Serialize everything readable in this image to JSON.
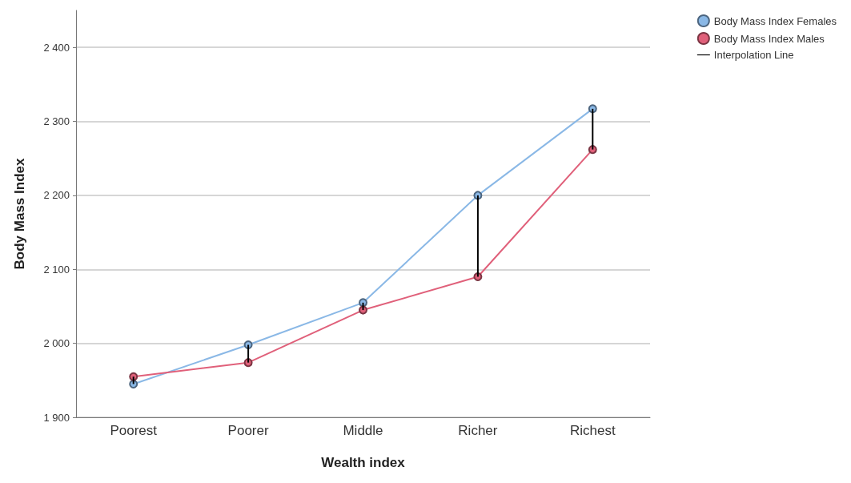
{
  "chart_data": {
    "type": "line",
    "xlabel": "Wealth index",
    "ylabel": "Body Mass Index",
    "categories": [
      "Poorest",
      "Poorer",
      "Middle",
      "Richer",
      "Richest"
    ],
    "series": [
      {
        "name": "Body Mass Index Females",
        "color": "#8ab8e6",
        "values": [
          1945,
          1998,
          2055,
          2200,
          2317
        ]
      },
      {
        "name": "Body Mass Index Males",
        "color": "#e0607a",
        "values": [
          1955,
          1974,
          2045,
          2090,
          2262
        ]
      },
      {
        "name": "Interpolation Line",
        "type": "bar",
        "color": "#000000",
        "base": [
          1955,
          1974,
          2045,
          2090,
          2262
        ],
        "values": [
          -10,
          24,
          10,
          110,
          55
        ]
      }
    ],
    "ylim": [
      1900,
      2450
    ],
    "yticks": [
      {
        "value": 1900,
        "label": "1 900"
      },
      {
        "value": 2000,
        "label": "2 000"
      },
      {
        "value": 2100,
        "label": "2 100"
      },
      {
        "value": 2200,
        "label": "2 200"
      },
      {
        "value": 2300,
        "label": "2 300"
      },
      {
        "value": 2400,
        "label": "2 400"
      }
    ],
    "grid": "y",
    "legend": "top right",
    "marker": "circle",
    "line_style": "solid"
  }
}
